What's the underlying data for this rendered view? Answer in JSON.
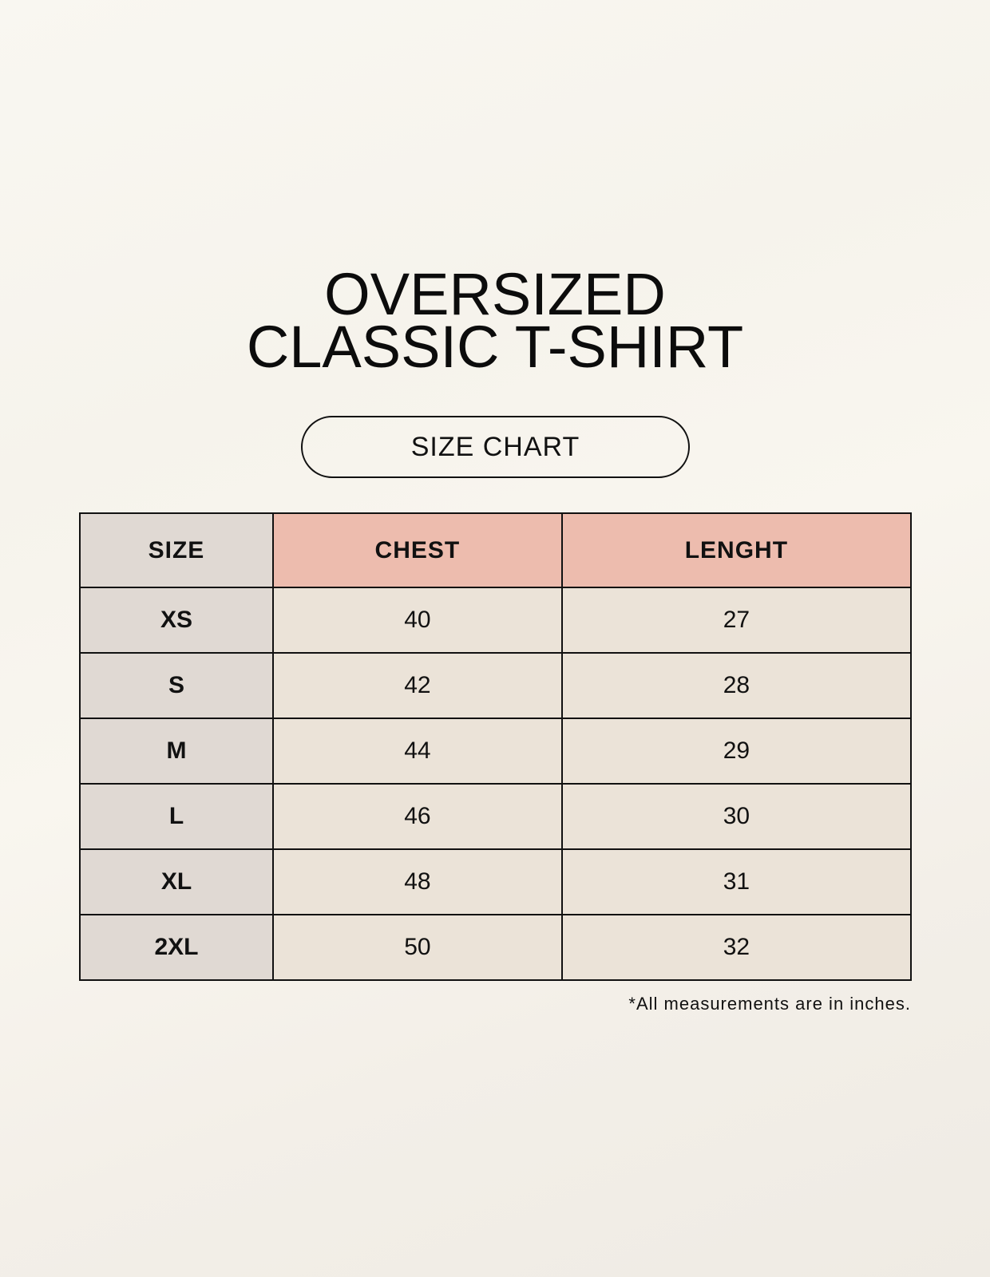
{
  "title": {
    "line1": "OVERSIZED",
    "line2": "CLASSIC T-SHIRT"
  },
  "badge": "SIZE CHART",
  "table": {
    "headers": [
      "SIZE",
      "CHEST",
      "LENGHT"
    ],
    "rows": [
      [
        "XS",
        "40",
        "27"
      ],
      [
        "S",
        "42",
        "28"
      ],
      [
        "M",
        "44",
        "29"
      ],
      [
        "L",
        "46",
        "30"
      ],
      [
        "XL",
        "48",
        "31"
      ],
      [
        "2XL",
        "50",
        "32"
      ]
    ]
  },
  "footnote": "*All measurements are in inches.",
  "colors": {
    "header_accent": "#edbcae",
    "size_column": "#e0d9d3",
    "cells": "#ebe3d8",
    "background": "#f8f5ef"
  }
}
